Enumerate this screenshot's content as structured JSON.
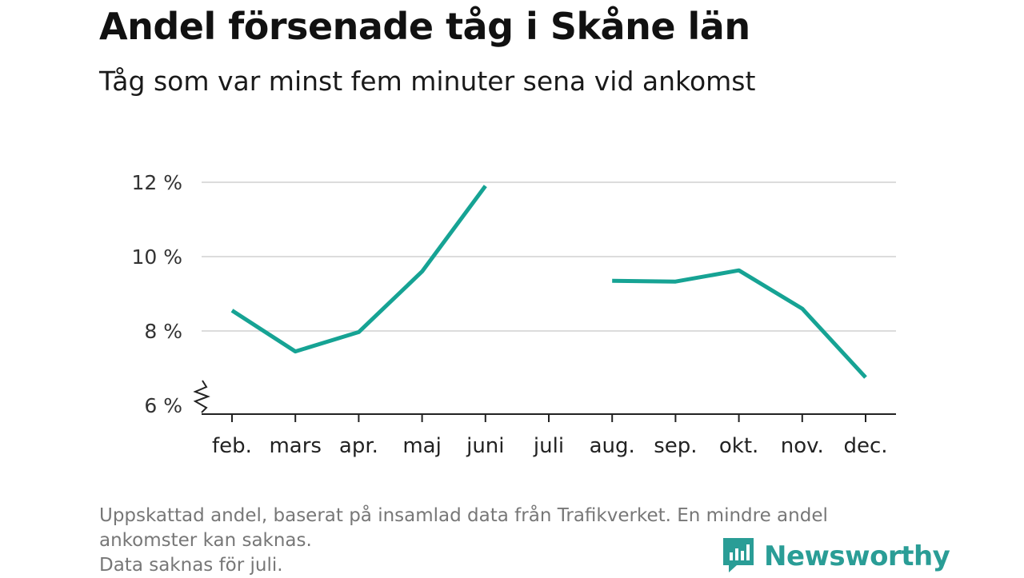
{
  "header": {
    "title": "Andel försenade tåg i Skåne län",
    "subtitle": "Tåg som var minst fem minuter sena vid ankomst"
  },
  "chart_data": {
    "type": "line",
    "categories": [
      "feb.",
      "mars",
      "apr.",
      "maj",
      "juni",
      "juli",
      "aug.",
      "sep.",
      "okt.",
      "nov.",
      "dec."
    ],
    "series": [
      {
        "values": [
          8.55,
          7.45,
          7.97,
          9.6,
          11.9,
          null,
          9.35,
          9.33,
          9.63,
          8.6,
          6.75
        ]
      }
    ],
    "ylim": [
      6,
      12.3
    ],
    "yticks": [
      6,
      8,
      10,
      12
    ],
    "ytick_labels": [
      "6 %",
      "8 %",
      "10 %",
      "12 %"
    ],
    "grid": true,
    "axis_break": true,
    "color": "#16a394"
  },
  "footer": {
    "note_lines": [
      "Uppskattad andel, baserat på insamlad data från Trafikverket. En mindre andel ankomster kan saknas.",
      "Data saknas för juli."
    ]
  },
  "logo": {
    "text": "Newsworthy",
    "icon": "newsworthy-chart-bubble-icon",
    "color": "#2a9d96"
  }
}
